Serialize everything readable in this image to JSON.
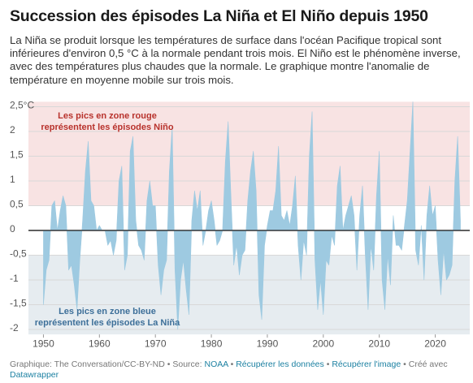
{
  "chart_data": {
    "type": "area",
    "title": "Succession des épisodes La Niña et El Niño depuis 1950",
    "subtitle": "La Niña se produit lorsque les températures de surface dans l'océan Pacifique tropical sont inférieures d'environ 0,5 °C à la normale pendant trois mois. El Niño est le phénomène inverse, avec des températures plus chaudes que la normale. Le graphique montre l'anomalie de température en moyenne mobile sur trois mois.",
    "x": [
      1950,
      1950.5,
      1951,
      1951.5,
      1952,
      1952.5,
      1953,
      1953.5,
      1954,
      1954.5,
      1955,
      1955.5,
      1956,
      1956.5,
      1957,
      1957.5,
      1958,
      1958.5,
      1959,
      1959.5,
      1960,
      1960.5,
      1961,
      1961.5,
      1962,
      1962.5,
      1963,
      1963.5,
      1964,
      1964.5,
      1965,
      1965.5,
      1966,
      1966.5,
      1967,
      1967.5,
      1968,
      1968.5,
      1969,
      1969.5,
      1970,
      1970.5,
      1971,
      1971.5,
      1972,
      1972.5,
      1973,
      1973.5,
      1974,
      1974.5,
      1975,
      1975.5,
      1976,
      1976.5,
      1977,
      1977.5,
      1978,
      1978.5,
      1979,
      1979.5,
      1980,
      1980.5,
      1981,
      1981.5,
      1982,
      1982.5,
      1983,
      1983.5,
      1984,
      1984.5,
      1985,
      1985.5,
      1986,
      1986.5,
      1987,
      1987.5,
      1988,
      1988.5,
      1989,
      1989.5,
      1990,
      1990.5,
      1991,
      1991.5,
      1992,
      1992.5,
      1993,
      1993.5,
      1994,
      1994.5,
      1995,
      1995.5,
      1996,
      1996.5,
      1997,
      1997.5,
      1998,
      1998.5,
      1999,
      1999.5,
      2000,
      2000.5,
      2001,
      2001.5,
      2002,
      2002.5,
      2003,
      2003.5,
      2004,
      2004.5,
      2005,
      2005.5,
      2006,
      2006.5,
      2007,
      2007.5,
      2008,
      2008.5,
      2009,
      2009.5,
      2010,
      2010.5,
      2011,
      2011.5,
      2012,
      2012.5,
      2013,
      2013.5,
      2014,
      2014.5,
      2015,
      2015.5,
      2016,
      2016.5,
      2017,
      2017.5,
      2018,
      2018.5,
      2019,
      2019.5,
      2020,
      2020.5,
      2021,
      2021.5,
      2022,
      2022.5,
      2023,
      2023.5,
      2024,
      2024.5
    ],
    "values": [
      -1.5,
      -0.8,
      -0.6,
      0.5,
      0.6,
      0,
      0.4,
      0.7,
      0.5,
      -0.8,
      -0.7,
      -1.1,
      -1.6,
      -0.6,
      0.2,
      1.2,
      1.8,
      0.6,
      0.5,
      0,
      0.1,
      0,
      0,
      -0.3,
      -0.2,
      -0.5,
      -0.2,
      1,
      1.3,
      -0.8,
      -0.5,
      1.6,
      1.9,
      0.2,
      -0.3,
      -0.4,
      -0.6,
      0.6,
      1,
      0.5,
      0.5,
      -0.7,
      -1.3,
      -0.8,
      -0.6,
      1.2,
      2.1,
      -0.8,
      -2,
      -1,
      -0.6,
      -1.2,
      -1.7,
      0.2,
      0.8,
      0.4,
      0.8,
      -0.3,
      0,
      0.4,
      0.6,
      0.2,
      -0.3,
      -0.2,
      0,
      1.4,
      2.2,
      0.7,
      -0.7,
      -0.3,
      -0.9,
      -0.5,
      -0.4,
      0.6,
      1.2,
      1.6,
      0.8,
      -1.3,
      -1.8,
      -0.3,
      0.1,
      0.4,
      0.4,
      0.8,
      1.7,
      0.3,
      0.2,
      0.4,
      0.1,
      0.5,
      1.1,
      -0.3,
      -1,
      -0.2,
      -0.5,
      1.5,
      2.4,
      -0.6,
      -1.6,
      -1,
      -1.7,
      -0.6,
      -0.7,
      -0.1,
      -0.3,
      0.9,
      1.3,
      0,
      0.3,
      0.5,
      0.7,
      0.3,
      -0.8,
      0.3,
      0.9,
      -0.5,
      -1.6,
      -0.3,
      -0.8,
      0.7,
      1.6,
      -1,
      -1.6,
      -0.5,
      -1.1,
      0.3,
      -0.3,
      -0.3,
      -0.4,
      0.1,
      0.6,
      1.6,
      2.6,
      -0.4,
      -0.7,
      0.1,
      -1,
      0.3,
      0.9,
      0.3,
      0.5,
      -0.6,
      -1.3,
      -0.4,
      -1,
      -0.9,
      -0.7,
      1,
      1.9,
      0.2
    ],
    "color": "#9ecae1",
    "xlim": [
      1949.5,
      2025
    ],
    "xticks": [
      1950,
      1960,
      1970,
      1980,
      1990,
      2000,
      2010,
      2020
    ],
    "ylim": [
      -2.1,
      2.6
    ],
    "yticks": [
      {
        "value": 2.5,
        "label": "2,5°C"
      },
      2,
      {
        "value": 1.5,
        "label": "1,5"
      },
      1,
      {
        "value": 0.5,
        "label": "0,5"
      },
      0,
      {
        "value": -0.5,
        "label": "-0,5"
      },
      -1,
      {
        "value": -1.5,
        "label": "-1,5"
      },
      -2
    ],
    "grid": true,
    "bands": [
      {
        "from": 0.5,
        "to": 2.6,
        "color": "#f8e3e3"
      },
      {
        "from": -0.5,
        "to": -2.1,
        "color": "#e6ecf0"
      }
    ],
    "annotations": [
      {
        "lines": [
          "Les pics en zone rouge",
          "représentent les épisodes Niño"
        ],
        "color": "#b8322c"
      },
      {
        "lines": [
          "Les pics en zone bleue",
          "représentent les épisodes La Niña"
        ],
        "color": "#3d6f99"
      }
    ],
    "footer": {
      "credit": "Graphique: The Conversation/CC-BY-ND",
      "separator": "•",
      "source_label": "Source:",
      "source": "NOAA",
      "links": [
        "Récupérer les données",
        "Récupérer l'image"
      ],
      "made_with": "Créé avec",
      "tool": "Datawrapper"
    }
  }
}
